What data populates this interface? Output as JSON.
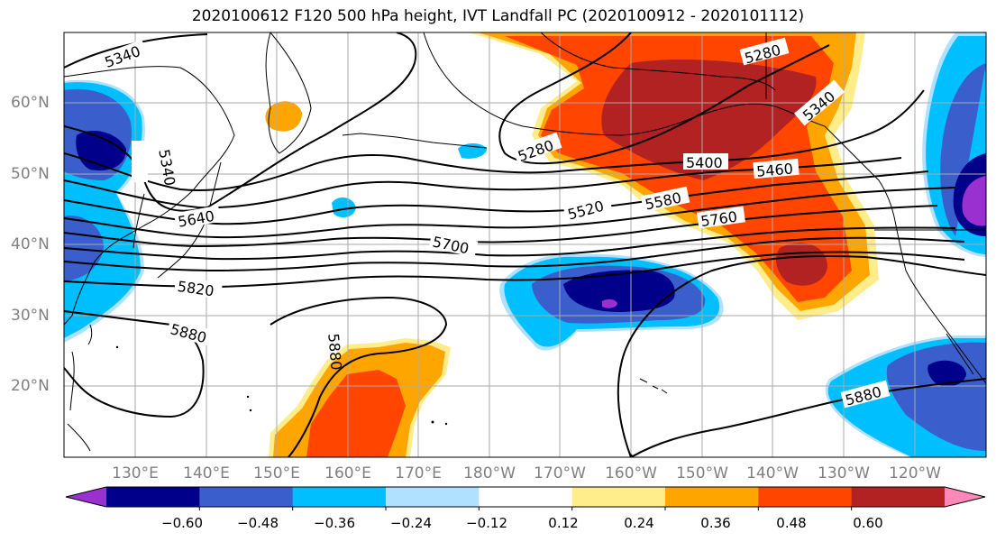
{
  "title": "2020100612 F120 500 hPa height, IVT Landfall PC (2020100912 - 2020101112)",
  "lat_labels": [
    "60°N",
    "50°N",
    "40°N",
    "30°N",
    "20°N"
  ],
  "lon_labels": [
    "130°E",
    "140°E",
    "150°E",
    "160°E",
    "170°E",
    "180°W",
    "170°W",
    "160°W",
    "150°W",
    "140°W",
    "130°W",
    "120°W"
  ],
  "contour_labels": [
    "5340",
    "5340",
    "5280",
    "5280",
    "5340",
    "5400",
    "5460",
    "5520",
    "5580",
    "5640",
    "5700",
    "5760",
    "5820",
    "5880",
    "5880",
    "5880"
  ],
  "colorbar": {
    "tick_labels": [
      "−0.60",
      "−0.48",
      "−0.36",
      "−0.24",
      "−0.12",
      "0.12",
      "0.24",
      "0.36",
      "0.48",
      "0.60"
    ],
    "colors": [
      "#9b30d0",
      "#00008b",
      "#3a5fcd",
      "#00bfff",
      "#b0e2ff",
      "#ffffff",
      "#ffec8b",
      "#ffa500",
      "#ff4500",
      "#b22222",
      "#ff88b8"
    ]
  }
}
